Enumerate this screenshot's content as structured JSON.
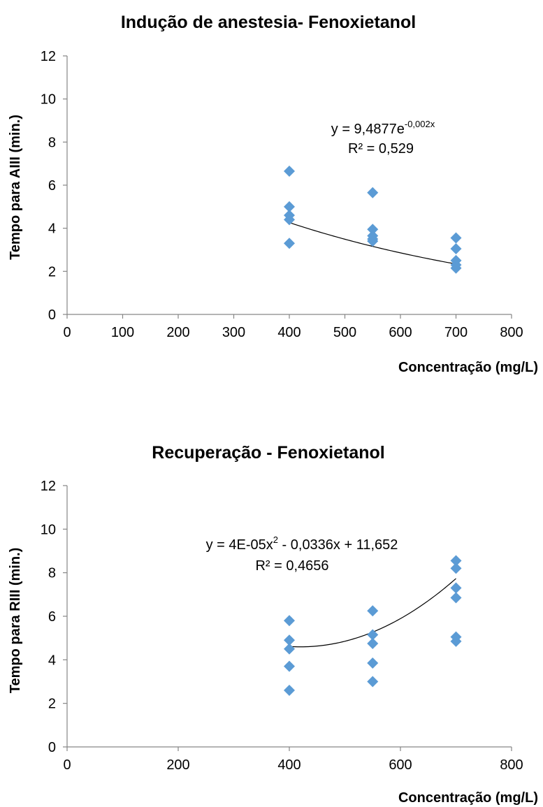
{
  "chart_data": [
    {
      "type": "scatter",
      "title": "Indução de anestesia- Fenoxietanol",
      "xlabel": "Concentração (mg/L)",
      "ylabel": "Tempo para AIII (min.)",
      "xlim": [
        0,
        800
      ],
      "ylim": [
        0,
        12
      ],
      "xticks": [
        0,
        100,
        200,
        300,
        400,
        500,
        600,
        700,
        800
      ],
      "yticks": [
        0,
        2,
        4,
        6,
        8,
        10,
        12
      ],
      "grid": false,
      "marker_color": "#5b9bd5",
      "series": [
        {
          "points": [
            {
              "x": 400,
              "y": 6.65
            },
            {
              "x": 400,
              "y": 5.0
            },
            {
              "x": 400,
              "y": 4.6
            },
            {
              "x": 400,
              "y": 4.4
            },
            {
              "x": 400,
              "y": 3.3
            },
            {
              "x": 550,
              "y": 5.65
            },
            {
              "x": 550,
              "y": 3.95
            },
            {
              "x": 550,
              "y": 3.65
            },
            {
              "x": 550,
              "y": 3.5
            },
            {
              "x": 550,
              "y": 3.4
            },
            {
              "x": 700,
              "y": 3.55
            },
            {
              "x": 700,
              "y": 3.05
            },
            {
              "x": 700,
              "y": 2.5
            },
            {
              "x": 700,
              "y": 2.3
            },
            {
              "x": 700,
              "y": 2.15
            }
          ]
        }
      ],
      "trendline": {
        "type": "exponential",
        "a": 9.4877,
        "b": -0.002,
        "x_range": [
          400,
          700
        ]
      },
      "equation": {
        "prefix": "y = 9,4877e",
        "exponent": "-0,002x"
      },
      "r2": "R² = 0,529"
    },
    {
      "type": "scatter",
      "title": "Recuperação - Fenoxietanol",
      "xlabel": "Concentração (mg/L)",
      "ylabel": "Tempo para RIII (min.)",
      "xlim": [
        0,
        800
      ],
      "ylim": [
        0,
        12
      ],
      "xticks": [
        0,
        200,
        400,
        600,
        800
      ],
      "yticks": [
        0,
        2,
        4,
        6,
        8,
        10,
        12
      ],
      "grid": false,
      "marker_color": "#5b9bd5",
      "series": [
        {
          "points": [
            {
              "x": 400,
              "y": 5.8
            },
            {
              "x": 400,
              "y": 4.9
            },
            {
              "x": 400,
              "y": 4.5
            },
            {
              "x": 400,
              "y": 3.7
            },
            {
              "x": 400,
              "y": 2.6
            },
            {
              "x": 550,
              "y": 6.25
            },
            {
              "x": 550,
              "y": 5.15
            },
            {
              "x": 550,
              "y": 4.75
            },
            {
              "x": 550,
              "y": 3.85
            },
            {
              "x": 550,
              "y": 3.0
            },
            {
              "x": 700,
              "y": 8.55
            },
            {
              "x": 700,
              "y": 8.2
            },
            {
              "x": 700,
              "y": 7.3
            },
            {
              "x": 700,
              "y": 6.85
            },
            {
              "x": 700,
              "y": 5.05
            },
            {
              "x": 700,
              "y": 4.85
            }
          ]
        }
      ],
      "trendline": {
        "type": "polynomial",
        "a": 4e-05,
        "b": -0.0336,
        "c": 11.652,
        "x_range": [
          400,
          700
        ]
      },
      "equation": {
        "prefix": "y = 4E-05x",
        "exponent": "2",
        "suffix": " - 0,0336x + 11,652"
      },
      "r2": "R² = 0,4656"
    }
  ]
}
